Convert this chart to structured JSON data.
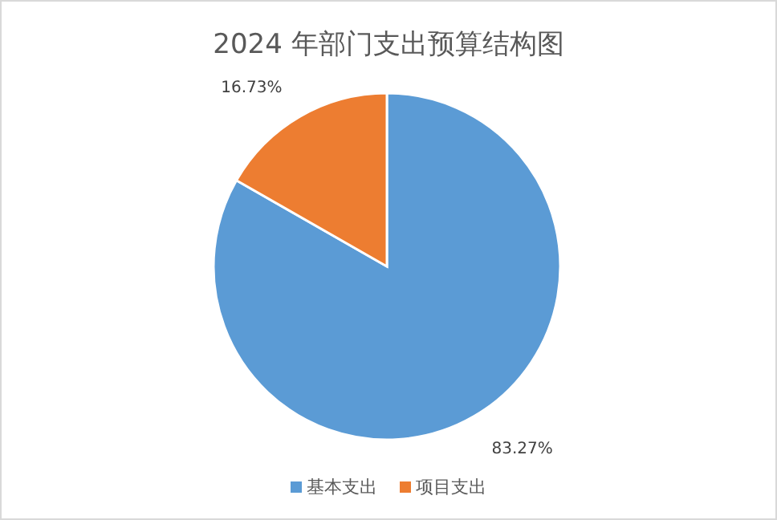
{
  "chart_data": {
    "type": "pie",
    "title": "2024 年部门支出预算结构图",
    "categories": [
      "基本支出",
      "项目支出"
    ],
    "values": [
      83.27,
      16.73
    ],
    "colors": [
      "#5b9bd5",
      "#ed7d31"
    ],
    "value_labels": [
      "83.27%",
      "16.73%"
    ],
    "legend": "bottom"
  }
}
